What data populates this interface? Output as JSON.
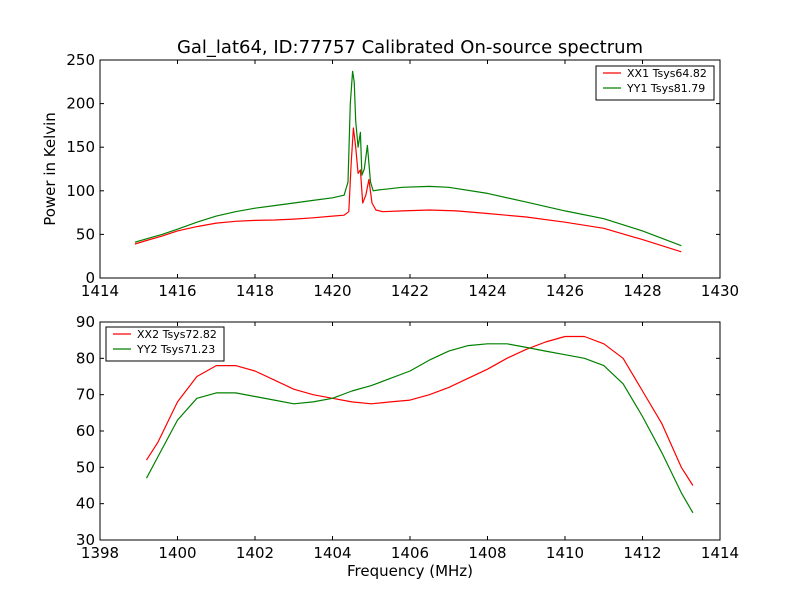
{
  "chart_data": [
    {
      "type": "line",
      "title": "Gal_lat64, ID:77757 Calibrated On-source spectrum",
      "xlabel": "",
      "ylabel": "Power in Kelvin",
      "xlim": [
        1414,
        1430
      ],
      "ylim": [
        0,
        250
      ],
      "xticks": [
        "1414",
        "1416",
        "1418",
        "1420",
        "1422",
        "1424",
        "1426",
        "1428",
        "1430"
      ],
      "yticks": [
        "0",
        "50",
        "100",
        "150",
        "200",
        "250"
      ],
      "legend_position": "top-right",
      "grid": false,
      "series": [
        {
          "name": "XX1 Tsys64.82",
          "color": "#ff0000",
          "points": [
            [
              1414.9,
              39
            ],
            [
              1415.2,
              43
            ],
            [
              1415.6,
              48
            ],
            [
              1416,
              54
            ],
            [
              1416.5,
              59
            ],
            [
              1417,
              63
            ],
            [
              1417.5,
              65
            ],
            [
              1418,
              66
            ],
            [
              1418.5,
              66.5
            ],
            [
              1419,
              67.5
            ],
            [
              1419.5,
              69
            ],
            [
              1420,
              71
            ],
            [
              1420.3,
              72
            ],
            [
              1420.42,
              76
            ],
            [
              1420.48,
              130
            ],
            [
              1420.54,
              172
            ],
            [
              1420.6,
              150
            ],
            [
              1420.66,
              120
            ],
            [
              1420.72,
              124
            ],
            [
              1420.78,
              86
            ],
            [
              1420.86,
              95
            ],
            [
              1420.94,
              113
            ],
            [
              1421.02,
              86
            ],
            [
              1421.12,
              78
            ],
            [
              1421.3,
              76
            ],
            [
              1421.8,
              77
            ],
            [
              1422.5,
              78
            ],
            [
              1423.2,
              77
            ],
            [
              1424,
              74
            ],
            [
              1425,
              70
            ],
            [
              1426,
              64
            ],
            [
              1427,
              57
            ],
            [
              1428,
              44
            ],
            [
              1429,
              30
            ]
          ]
        },
        {
          "name": "YY1 Tsys81.79",
          "color": "#008000",
          "points": [
            [
              1414.9,
              41
            ],
            [
              1415.2,
              45
            ],
            [
              1415.6,
              50
            ],
            [
              1416,
              56
            ],
            [
              1416.5,
              64
            ],
            [
              1417,
              71
            ],
            [
              1417.5,
              76
            ],
            [
              1418,
              80
            ],
            [
              1418.5,
              83
            ],
            [
              1419,
              86
            ],
            [
              1419.5,
              89
            ],
            [
              1420,
              92
            ],
            [
              1420.3,
              95
            ],
            [
              1420.4,
              110
            ],
            [
              1420.46,
              200
            ],
            [
              1420.52,
              237
            ],
            [
              1420.56,
              225
            ],
            [
              1420.6,
              180
            ],
            [
              1420.66,
              150
            ],
            [
              1420.72,
              167
            ],
            [
              1420.76,
              118
            ],
            [
              1420.82,
              125
            ],
            [
              1420.9,
              152
            ],
            [
              1420.98,
              110
            ],
            [
              1421.05,
              100
            ],
            [
              1421.2,
              101
            ],
            [
              1421.8,
              104
            ],
            [
              1422.5,
              105
            ],
            [
              1423,
              104
            ],
            [
              1424,
              97
            ],
            [
              1425,
              87
            ],
            [
              1426,
              77
            ],
            [
              1427,
              68
            ],
            [
              1428,
              54
            ],
            [
              1429,
              37
            ]
          ]
        }
      ]
    },
    {
      "type": "line",
      "title": "",
      "xlabel": "Frequency (MHz)",
      "ylabel": "",
      "xlim": [
        1398,
        1414
      ],
      "ylim": [
        30,
        90
      ],
      "xticks": [
        "1398",
        "1400",
        "1402",
        "1404",
        "1406",
        "1408",
        "1410",
        "1412",
        "1414"
      ],
      "yticks": [
        "30",
        "40",
        "50",
        "60",
        "70",
        "80",
        "90"
      ],
      "legend_position": "top-left",
      "grid": false,
      "series": [
        {
          "name": "XX2 Tsys72.82",
          "color": "#ff0000",
          "points": [
            [
              1399.2,
              52
            ],
            [
              1399.5,
              57
            ],
            [
              1400,
              68
            ],
            [
              1400.5,
              75
            ],
            [
              1401,
              78
            ],
            [
              1401.5,
              78
            ],
            [
              1402,
              76.5
            ],
            [
              1402.5,
              74
            ],
            [
              1403,
              71.5
            ],
            [
              1403.5,
              70
            ],
            [
              1404,
              69
            ],
            [
              1404.5,
              68
            ],
            [
              1405,
              67.5
            ],
            [
              1405.5,
              68
            ],
            [
              1406,
              68.5
            ],
            [
              1406.5,
              70
            ],
            [
              1407,
              72
            ],
            [
              1407.5,
              74.5
            ],
            [
              1408,
              77
            ],
            [
              1408.5,
              80
            ],
            [
              1409,
              82.5
            ],
            [
              1409.5,
              84.5
            ],
            [
              1410,
              86
            ],
            [
              1410.5,
              86
            ],
            [
              1411,
              84
            ],
            [
              1411.5,
              80
            ],
            [
              1412,
              71
            ],
            [
              1412.5,
              62
            ],
            [
              1413,
              50
            ],
            [
              1413.3,
              45
            ]
          ]
        },
        {
          "name": "YY2 Tsys71.23",
          "color": "#008000",
          "points": [
            [
              1399.2,
              47
            ],
            [
              1399.5,
              53
            ],
            [
              1400,
              63
            ],
            [
              1400.5,
              69
            ],
            [
              1401,
              70.5
            ],
            [
              1401.5,
              70.5
            ],
            [
              1402,
              69.5
            ],
            [
              1402.5,
              68.5
            ],
            [
              1403,
              67.5
            ],
            [
              1403.5,
              68
            ],
            [
              1404,
              69
            ],
            [
              1404.5,
              71
            ],
            [
              1405,
              72.5
            ],
            [
              1405.5,
              74.5
            ],
            [
              1406,
              76.5
            ],
            [
              1406.5,
              79.5
            ],
            [
              1407,
              82
            ],
            [
              1407.5,
              83.5
            ],
            [
              1408,
              84
            ],
            [
              1408.5,
              84
            ],
            [
              1409,
              83
            ],
            [
              1409.5,
              82
            ],
            [
              1410,
              81
            ],
            [
              1410.5,
              80
            ],
            [
              1411,
              78
            ],
            [
              1411.5,
              73
            ],
            [
              1412,
              64
            ],
            [
              1412.5,
              54
            ],
            [
              1413,
              43
            ],
            [
              1413.3,
              37.5
            ]
          ]
        }
      ]
    }
  ]
}
